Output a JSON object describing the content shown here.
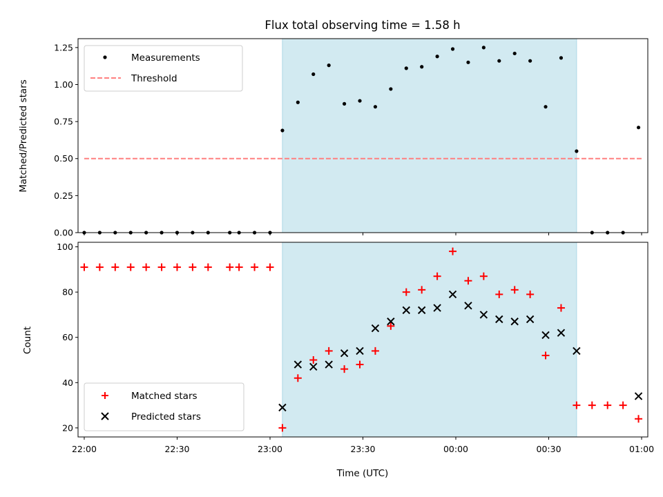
{
  "chart_data": [
    {
      "type": "scatter",
      "title": "Flux total observing time = 1.58 h",
      "xlabel": "",
      "ylabel": "Matched/Predicted stars",
      "xlim": [
        "21:58",
        "01:02"
      ],
      "ylim": [
        0,
        1.31
      ],
      "yticks": [
        0.0,
        0.25,
        0.5,
        0.75,
        1.0,
        1.25
      ],
      "ytick_labels": [
        "0.00",
        "0.25",
        "0.50",
        "0.75",
        "1.00",
        "1.25"
      ],
      "legend": {
        "position": "upper-left",
        "entries": [
          "Measurements",
          "Threshold"
        ]
      },
      "shaded_interval": {
        "from": "23:04",
        "to": "00:39",
        "color": "#add8e6"
      },
      "threshold": {
        "name": "Threshold",
        "value": 0.5,
        "from": "22:00",
        "to": "01:00",
        "color": "#ff7f7f"
      },
      "series": [
        {
          "name": "Measurements",
          "marker": "dot",
          "color": "#000000",
          "x": [
            "22:00",
            "22:05",
            "22:10",
            "22:15",
            "22:20",
            "22:25",
            "22:30",
            "22:35",
            "22:40",
            "22:47",
            "22:50",
            "22:55",
            "23:00",
            "23:04",
            "23:09",
            "23:14",
            "23:19",
            "23:24",
            "23:29",
            "23:34",
            "23:39",
            "23:44",
            "23:49",
            "23:54",
            "23:59",
            "00:04",
            "00:09",
            "00:14",
            "00:19",
            "00:24",
            "00:29",
            "00:34",
            "00:39",
            "00:44",
            "00:49",
            "00:54",
            "00:59"
          ],
          "y": [
            0,
            0,
            0,
            0,
            0,
            0,
            0,
            0,
            0,
            0,
            0,
            0,
            0,
            0.69,
            0.88,
            1.07,
            1.13,
            0.87,
            0.89,
            0.85,
            0.97,
            1.11,
            1.12,
            1.19,
            1.24,
            1.15,
            1.25,
            1.16,
            1.21,
            1.16,
            0.85,
            1.18,
            0.55,
            0,
            0,
            0,
            0.71
          ]
        }
      ]
    },
    {
      "type": "scatter",
      "title": "",
      "xlabel": "Time (UTC)",
      "ylabel": "Count",
      "xlim": [
        "21:58",
        "01:02"
      ],
      "ylim": [
        16,
        102
      ],
      "yticks": [
        20,
        40,
        60,
        80,
        100
      ],
      "ytick_labels": [
        "20",
        "40",
        "60",
        "80",
        "100"
      ],
      "xticks": [
        "22:00",
        "22:30",
        "23:00",
        "23:30",
        "00:00",
        "00:30",
        "01:00"
      ],
      "legend": {
        "position": "lower-left",
        "entries": [
          "Matched stars",
          "Predicted stars"
        ]
      },
      "shaded_interval": {
        "from": "23:04",
        "to": "00:39",
        "color": "#add8e6"
      },
      "series": [
        {
          "name": "Matched stars",
          "marker": "plus",
          "color": "#ff0000",
          "x": [
            "22:00",
            "22:05",
            "22:10",
            "22:15",
            "22:20",
            "22:25",
            "22:30",
            "22:35",
            "22:40",
            "22:47",
            "22:50",
            "22:55",
            "23:00",
            "23:04",
            "23:09",
            "23:14",
            "23:19",
            "23:24",
            "23:29",
            "23:34",
            "23:39",
            "23:44",
            "23:49",
            "23:54",
            "23:59",
            "00:04",
            "00:09",
            "00:14",
            "00:19",
            "00:24",
            "00:29",
            "00:34",
            "00:39",
            "00:44",
            "00:49",
            "00:54",
            "00:59"
          ],
          "y": [
            91,
            91,
            91,
            91,
            91,
            91,
            91,
            91,
            91,
            91,
            91,
            91,
            91,
            20,
            42,
            50,
            54,
            46,
            48,
            54,
            65,
            80,
            81,
            87,
            98,
            85,
            87,
            79,
            81,
            79,
            52,
            73,
            30,
            30,
            30,
            30,
            24
          ]
        },
        {
          "name": "Predicted stars",
          "marker": "x",
          "color": "#000000",
          "x": [
            "23:04",
            "23:09",
            "23:14",
            "23:19",
            "23:24",
            "23:29",
            "23:34",
            "23:39",
            "23:44",
            "23:49",
            "23:54",
            "23:59",
            "00:04",
            "00:09",
            "00:14",
            "00:19",
            "00:24",
            "00:29",
            "00:34",
            "00:39",
            "00:59"
          ],
          "y": [
            29,
            48,
            47,
            48,
            53,
            54,
            64,
            67,
            72,
            72,
            73,
            79,
            74,
            70,
            68,
            67,
            68,
            61,
            62,
            54,
            34
          ]
        }
      ]
    }
  ]
}
